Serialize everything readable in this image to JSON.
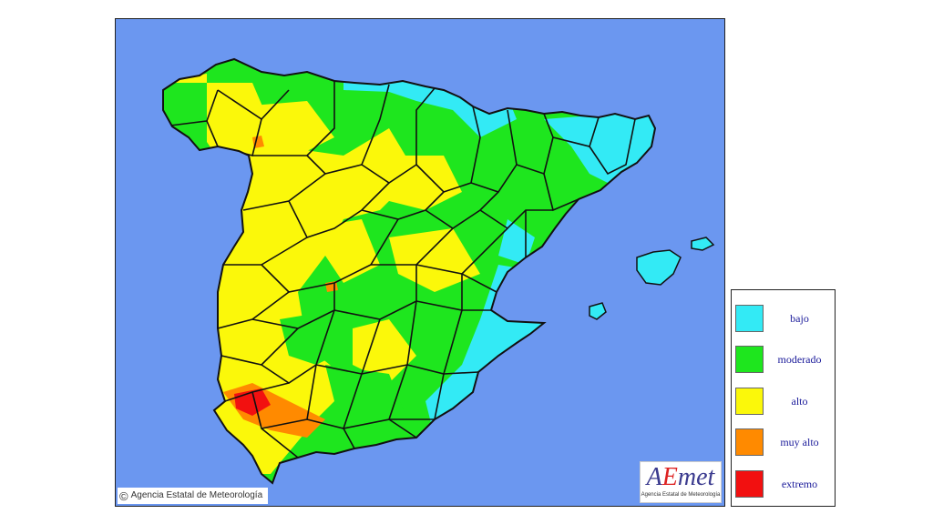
{
  "map": {
    "copyright": "Agencia Estatal de Meteorología",
    "copyright_icon": "copyright-icon",
    "logo": {
      "name": "AEmet",
      "subtitle": "Agencia Estatal de Meteorología"
    },
    "colors": {
      "sea": "#6b97f0",
      "bajo": "#33eaf5",
      "moderado": "#1ee61e",
      "alto": "#fbf80a",
      "muy_alto": "#ff8a00",
      "extremo": "#f21010",
      "border": "#111111"
    }
  },
  "legend": {
    "items": [
      {
        "label": "bajo",
        "color": "#33eaf5"
      },
      {
        "label": "moderado",
        "color": "#1ee61e"
      },
      {
        "label": "alto",
        "color": "#fbf80a"
      },
      {
        "label": "muy alto",
        "color": "#ff8a00"
      },
      {
        "label": "extremo",
        "color": "#f21010"
      }
    ]
  }
}
